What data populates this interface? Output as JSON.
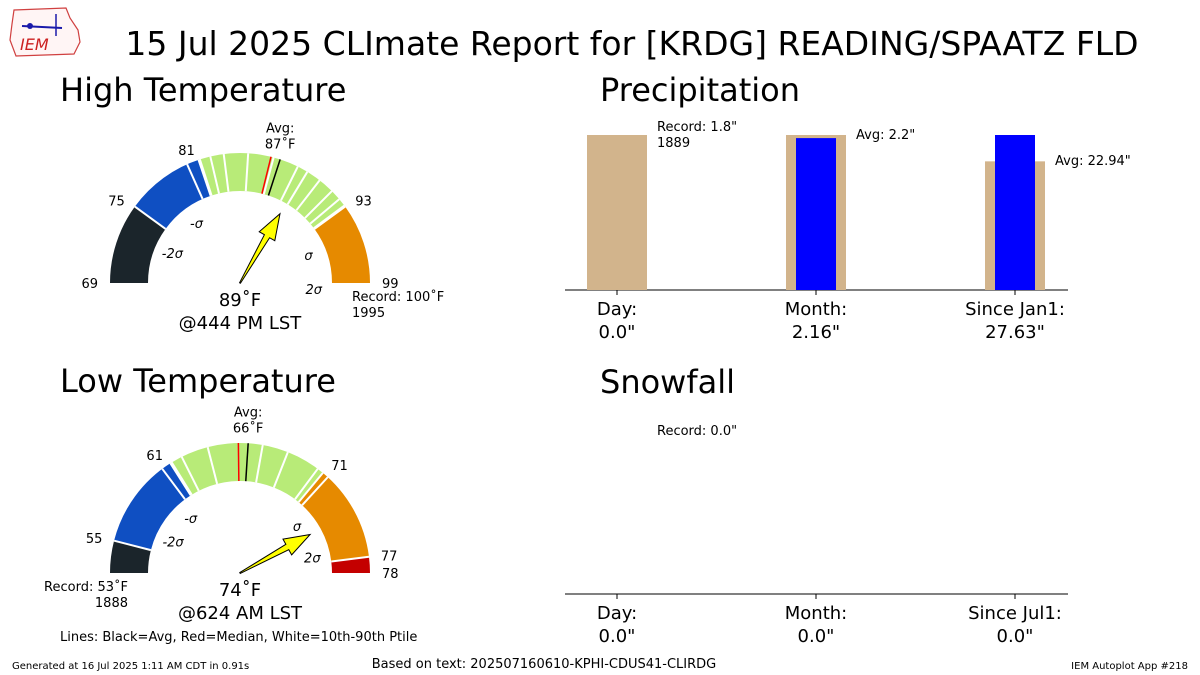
{
  "title": "15 Jul 2025 CLImate Report for [KRDG] READING/SPAATZ FLD",
  "logo_text": "IEM",
  "colors": {
    "dark": "#1b252b",
    "blue": "#0f4fc2",
    "green": "#b8eb78",
    "orange": "#e68a00",
    "red": "#c40000",
    "tan": "#d2b48c",
    "bar_blue": "#0000ff",
    "arrow": "#ffff00"
  },
  "chart_data": [
    {
      "type": "gauge",
      "name": "high",
      "title": "High Temperature",
      "range": [
        69,
        99
      ],
      "ticks": [
        69,
        75,
        81,
        93,
        99
      ],
      "avg": 87,
      "median": 86.3,
      "observed": 89,
      "record": 100,
      "record_year": "1995",
      "sigma_labels": [
        "-2σ",
        "-σ",
        "σ",
        "2σ"
      ],
      "percentile_lines": [
        80,
        80.9,
        81.8,
        82.8,
        84.6,
        86.5,
        88.4,
        89.2,
        90.3,
        91.5,
        92.3,
        92.9
      ],
      "segments": [
        {
          "from": 69,
          "to": 75,
          "color": "dark"
        },
        {
          "from": 75,
          "to": 81,
          "color": "blue"
        },
        {
          "from": 81,
          "to": 93,
          "color": "green"
        },
        {
          "from": 93,
          "to": 99,
          "color": "orange"
        },
        {
          "from": 99,
          "to": 100,
          "color": "red"
        }
      ],
      "avg_label": "Avg:",
      "avg_value_label": "87˚F",
      "observed_label": "89˚F",
      "time_label": "@444 PM LST",
      "record_label": "Record: 100˚F"
    },
    {
      "type": "gauge",
      "name": "low",
      "title": "Low Temperature",
      "range": [
        53,
        78
      ],
      "ticks": [
        55,
        61,
        71,
        77,
        78
      ],
      "avg": 66,
      "median": 65.4,
      "observed": 74,
      "record": 53,
      "record_year": "1888",
      "sigma_labels": [
        "-2σ",
        "-σ",
        "σ",
        "2σ"
      ],
      "percentile_lines": [
        60.4,
        61.1,
        61.8,
        63.5,
        66.9,
        68.5,
        70.6,
        71.4
      ],
      "segments": [
        {
          "from": 52,
          "to": 55,
          "color": "dark"
        },
        {
          "from": 55,
          "to": 61,
          "color": "blue"
        },
        {
          "from": 61,
          "to": 71,
          "color": "green"
        },
        {
          "from": 71,
          "to": 77,
          "color": "orange"
        },
        {
          "from": 77,
          "to": 78,
          "color": "red"
        }
      ],
      "avg_label": "Avg:",
      "avg_value_label": "66˚F",
      "observed_label": "74˚F",
      "time_label": "@624 AM LST",
      "record_label": "Record: 53˚F"
    },
    {
      "type": "bar",
      "name": "precip",
      "title": "Precipitation",
      "categories": [
        "Day:",
        "Month:",
        "Since Jan1:"
      ],
      "category_values": [
        "0.0\"",
        "2.16\"",
        "27.63\""
      ],
      "normalized_max": 1.0,
      "series": [
        {
          "name": "Record/Avg",
          "color": "tan",
          "values": [
            1.0,
            1.0,
            0.83
          ]
        },
        {
          "name": "Observed",
          "color": "bar_blue",
          "values": [
            0.0,
            0.98,
            1.0
          ]
        }
      ],
      "annotations": [
        "Record: 1.8\"",
        "1889",
        "Avg: 2.2\"",
        "Avg: 22.94\""
      ]
    },
    {
      "type": "bar",
      "name": "snow",
      "title": "Snowfall",
      "categories": [
        "Day:",
        "Month:",
        "Since Jul1:"
      ],
      "category_values": [
        "0.0\"",
        "0.0\"",
        "0.0\""
      ],
      "series": [],
      "annotations": [
        "Record: 0.0\""
      ]
    }
  ],
  "footer": {
    "legend_note": "Lines: Black=Avg, Red=Median, White=10th-90th Ptile",
    "generated": "Generated at 16 Jul 2025 1:11 AM CDT in 0.91s",
    "based_on": "Based on text: 202507160610-KPHI-CDUS41-CLIRDG",
    "app": "IEM Autoplot App #218"
  }
}
